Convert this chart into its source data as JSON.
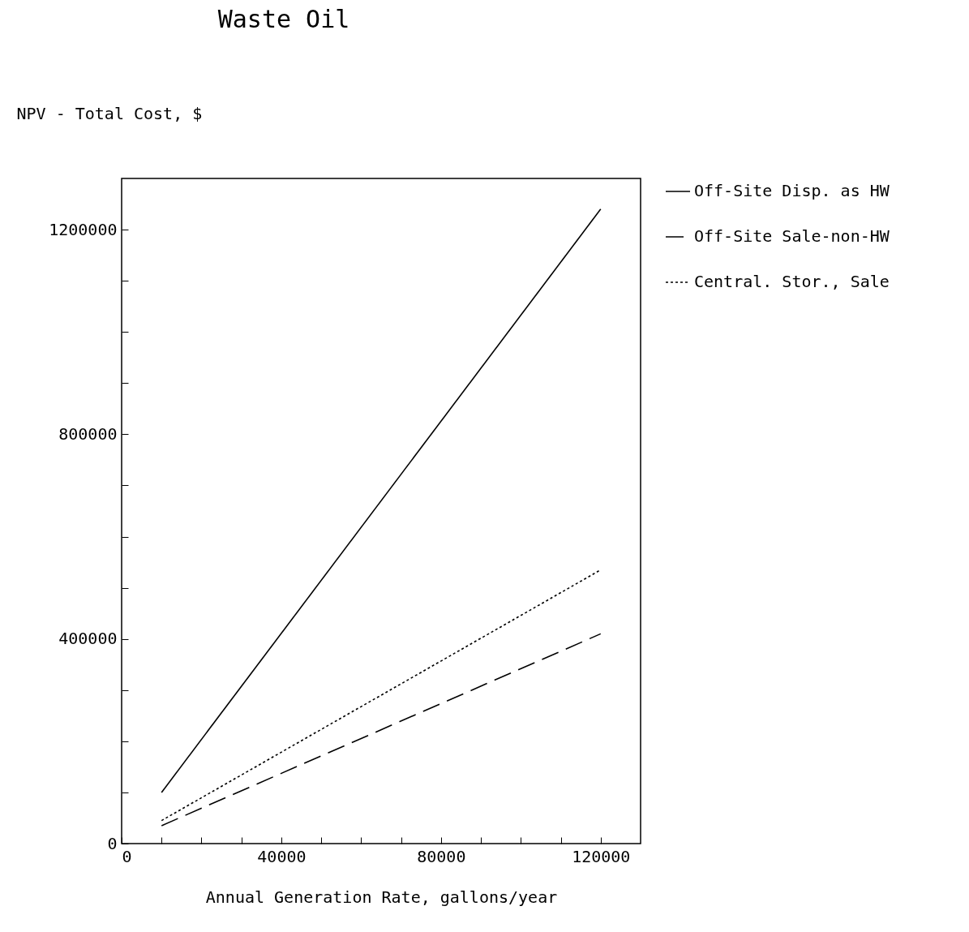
{
  "chart_data": {
    "type": "line",
    "title": "Waste Oil",
    "ylabel": "NPV - Total Cost, $",
    "xlabel": "Annual Generation Rate, gallons/year",
    "x": [
      10000,
      120000
    ],
    "series": [
      {
        "name": "Off-Site Disp. as HW",
        "color": "#000000",
        "line_style": "solid",
        "values": [
          100000,
          1240000
        ]
      },
      {
        "name": "Off-Site Sale-non-HW",
        "color": "#000000",
        "line_style": "dashed",
        "values": [
          35000,
          410000
        ]
      },
      {
        "name": "Central. Stor., Sale",
        "color": "#000000",
        "line_style": "dotted",
        "values": [
          45000,
          535000
        ]
      }
    ],
    "xlim": [
      0,
      130000
    ],
    "ylim": [
      0,
      1300000
    ],
    "xticks": [
      0,
      {
        "value": 10000,
        "label": null
      },
      {
        "value": 20000,
        "label": null
      },
      {
        "value": 30000,
        "label": null
      },
      40000,
      {
        "value": 50000,
        "label": null
      },
      {
        "value": 60000,
        "label": null
      },
      {
        "value": 70000,
        "label": null
      },
      80000,
      {
        "value": 90000,
        "label": null
      },
      {
        "value": 100000,
        "label": null
      },
      {
        "value": 110000,
        "label": null
      },
      120000
    ],
    "yticks": [
      0,
      {
        "value": 100000,
        "label": null
      },
      {
        "value": 200000,
        "label": null
      },
      {
        "value": 300000,
        "label": null
      },
      400000,
      {
        "value": 500000,
        "label": null
      },
      {
        "value": 600000,
        "label": null
      },
      {
        "value": 700000,
        "label": null
      },
      800000,
      {
        "value": 900000,
        "label": null
      },
      {
        "value": 1000000,
        "label": null
      },
      {
        "value": 1100000,
        "label": null
      },
      1200000
    ],
    "legend": "top right",
    "grid": false,
    "marker": "none"
  }
}
